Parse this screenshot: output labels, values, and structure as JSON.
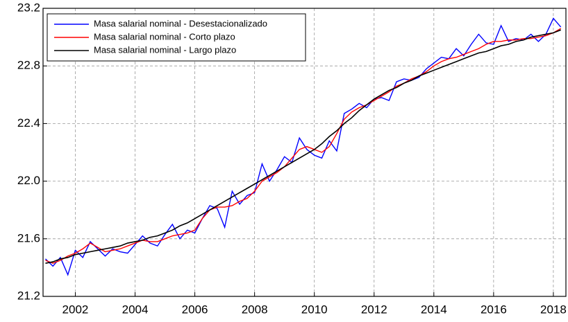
{
  "chart_data": {
    "type": "line",
    "x": [
      2001,
      2001.25,
      2001.5,
      2001.75,
      2002,
      2002.25,
      2002.5,
      2002.75,
      2003,
      2003.25,
      2003.5,
      2003.75,
      2004,
      2004.25,
      2004.5,
      2004.75,
      2005,
      2005.25,
      2005.5,
      2005.75,
      2006,
      2006.25,
      2006.5,
      2006.75,
      2007,
      2007.25,
      2007.5,
      2007.75,
      2008,
      2008.25,
      2008.5,
      2008.75,
      2009,
      2009.25,
      2009.5,
      2009.75,
      2010,
      2010.25,
      2010.5,
      2010.75,
      2011,
      2011.25,
      2011.5,
      2011.75,
      2012,
      2012.25,
      2012.5,
      2012.75,
      2013,
      2013.25,
      2013.5,
      2013.75,
      2014,
      2014.25,
      2014.5,
      2014.75,
      2015,
      2015.25,
      2015.5,
      2015.75,
      2016,
      2016.25,
      2016.5,
      2016.75,
      2017,
      2017.25,
      2017.5,
      2017.75,
      2018,
      2018.25
    ],
    "series": [
      {
        "name": "Masa salarial nominal - Desestacionalizado",
        "color": "#0000ff",
        "values": [
          21.46,
          21.41,
          21.47,
          21.35,
          21.52,
          21.47,
          21.58,
          21.53,
          21.48,
          21.53,
          21.51,
          21.5,
          21.56,
          21.62,
          21.57,
          21.55,
          21.63,
          21.7,
          21.6,
          21.66,
          21.64,
          21.74,
          21.83,
          21.81,
          21.68,
          21.93,
          21.84,
          21.9,
          21.92,
          22.12,
          22.0,
          22.08,
          22.17,
          22.13,
          22.3,
          22.22,
          22.18,
          22.16,
          22.28,
          22.21,
          22.47,
          22.5,
          22.54,
          22.51,
          22.57,
          22.58,
          22.56,
          22.69,
          22.71,
          22.7,
          22.72,
          22.78,
          22.82,
          22.86,
          22.85,
          22.92,
          22.87,
          22.95,
          23.02,
          22.96,
          22.95,
          23.08,
          22.97,
          22.99,
          22.98,
          23.02,
          22.97,
          23.02,
          23.13,
          23.07
        ]
      },
      {
        "name": "Masa salarial nominal - Corto plazo",
        "color": "#ff0000",
        "values": [
          21.45,
          21.43,
          21.45,
          21.48,
          21.5,
          21.53,
          21.57,
          21.54,
          21.51,
          21.52,
          21.53,
          21.55,
          21.57,
          21.59,
          21.58,
          21.58,
          21.6,
          21.62,
          21.63,
          21.64,
          21.66,
          21.74,
          21.8,
          21.82,
          21.82,
          21.83,
          21.86,
          21.88,
          21.93,
          22.0,
          22.03,
          22.06,
          22.1,
          22.16,
          22.22,
          22.24,
          22.22,
          22.2,
          22.24,
          22.33,
          22.43,
          22.48,
          22.51,
          22.53,
          22.56,
          22.59,
          22.62,
          22.66,
          22.68,
          22.71,
          22.73,
          22.76,
          22.8,
          22.83,
          22.85,
          22.86,
          22.88,
          22.9,
          22.92,
          22.95,
          22.97,
          22.97,
          22.98,
          22.98,
          22.99,
          22.99,
          23.0,
          23.01,
          23.03,
          23.06
        ]
      },
      {
        "name": "Masa salarial nominal - Largo plazo",
        "color": "#000000",
        "values": [
          21.43,
          21.44,
          21.46,
          21.47,
          21.49,
          21.5,
          21.51,
          21.52,
          21.53,
          21.54,
          21.55,
          21.57,
          21.58,
          21.59,
          21.61,
          21.62,
          21.64,
          21.66,
          21.69,
          21.71,
          21.74,
          21.77,
          21.8,
          21.83,
          21.86,
          21.89,
          21.92,
          21.95,
          21.98,
          22.01,
          22.04,
          22.07,
          22.1,
          22.13,
          22.16,
          22.19,
          22.22,
          22.26,
          22.31,
          22.35,
          22.4,
          22.44,
          22.49,
          22.53,
          22.57,
          22.6,
          22.63,
          22.65,
          22.68,
          22.7,
          22.73,
          22.75,
          22.77,
          22.79,
          22.81,
          22.83,
          22.85,
          22.87,
          22.89,
          22.9,
          22.92,
          22.94,
          22.95,
          22.97,
          22.98,
          23.0,
          23.01,
          23.02,
          23.03,
          23.05
        ]
      }
    ],
    "xlim": [
      2000.92,
      2018.42
    ],
    "xticks": [
      2002,
      2004,
      2006,
      2008,
      2010,
      2012,
      2014,
      2016,
      2018
    ],
    "ylim": [
      21.2,
      23.2
    ],
    "yticks": [
      21.2,
      21.6,
      {
        "value": 22,
        "label": "22.0"
      },
      22.4,
      22.8,
      23.2
    ],
    "grid": true,
    "legend": "upper left"
  }
}
